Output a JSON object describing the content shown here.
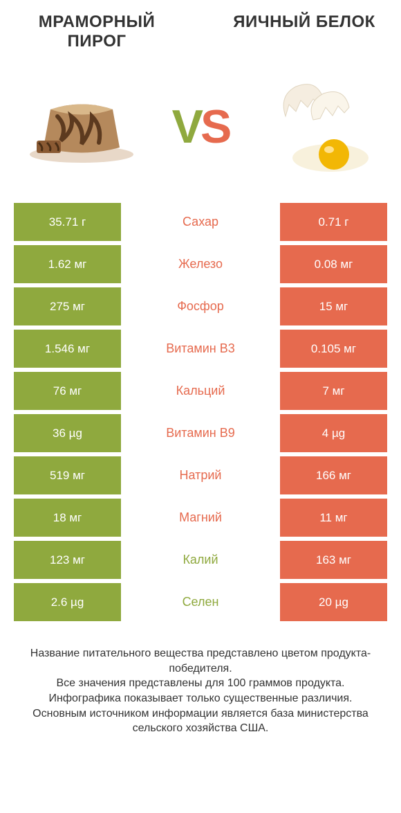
{
  "header": {
    "left_title": "МРАМОРНЫЙ ПИРОГ",
    "right_title": "ЯИЧНЫЙ БЕЛОК"
  },
  "vs": {
    "v": "V",
    "s": "S"
  },
  "colors": {
    "green": "#8fa93e",
    "orange": "#e66a4e",
    "text": "#333333",
    "white": "#ffffff"
  },
  "table": {
    "rows": [
      {
        "left": "35.71 г",
        "mid": "Сахар",
        "right": "0.71 г",
        "winner": "left"
      },
      {
        "left": "1.62 мг",
        "mid": "Железо",
        "right": "0.08 мг",
        "winner": "left"
      },
      {
        "left": "275 мг",
        "mid": "Фосфор",
        "right": "15 мг",
        "winner": "left"
      },
      {
        "left": "1.546 мг",
        "mid": "Витамин B3",
        "right": "0.105 мг",
        "winner": "left"
      },
      {
        "left": "76 мг",
        "mid": "Кальций",
        "right": "7 мг",
        "winner": "left"
      },
      {
        "left": "36 µg",
        "mid": "Витамин B9",
        "right": "4 µg",
        "winner": "left"
      },
      {
        "left": "519 мг",
        "mid": "Натрий",
        "right": "166 мг",
        "winner": "left"
      },
      {
        "left": "18 мг",
        "mid": "Магний",
        "right": "11 мг",
        "winner": "left"
      },
      {
        "left": "123 мг",
        "mid": "Калий",
        "right": "163 мг",
        "winner": "right"
      },
      {
        "left": "2.6 µg",
        "mid": "Селен",
        "right": "20 µg",
        "winner": "right"
      }
    ]
  },
  "footer": {
    "line1": "Название питательного вещества представлено цветом продукта-победителя.",
    "line2": "Все значения представлены для 100 граммов продукта.",
    "line3": "Инфографика показывает только существенные различия.",
    "line4": "Основным источником информации является база министерства сельского хозяйства США."
  },
  "illustrations": {
    "left": "marble-cake",
    "right": "cracked-egg"
  }
}
